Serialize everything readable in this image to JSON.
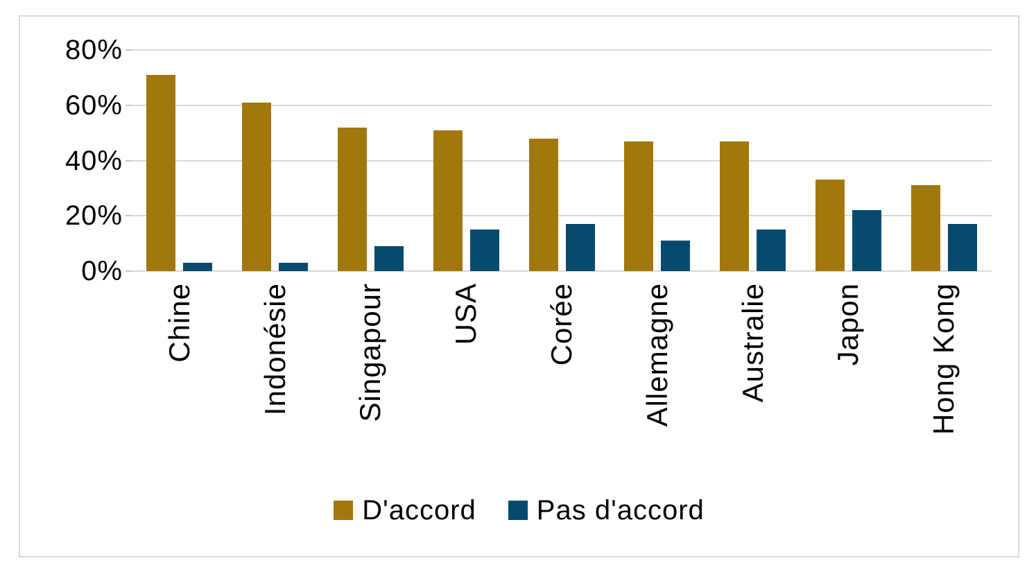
{
  "chart_data": {
    "type": "bar",
    "title": "",
    "categories": [
      "Chine",
      "Indonésie",
      "Singapour",
      "USA",
      "Corée",
      "Allemagne",
      "Australie",
      "Japon",
      "Hong Kong"
    ],
    "series": [
      {
        "name": "D'accord",
        "color": "#A1780B",
        "values": [
          71,
          61,
          52,
          51,
          48,
          47,
          47,
          33,
          31
        ]
      },
      {
        "name": "Pas d'accord",
        "color": "#064A6D",
        "values": [
          3,
          3,
          9,
          15,
          17,
          11,
          15,
          22,
          17
        ]
      }
    ],
    "xlabel": "",
    "ylabel": "",
    "ylim": [
      0,
      80
    ],
    "yticks": [
      {
        "value": 0,
        "label": "0%"
      },
      {
        "value": 20,
        "label": "20%"
      },
      {
        "value": 40,
        "label": "40%"
      },
      {
        "value": 60,
        "label": "60%"
      },
      {
        "value": 80,
        "label": "80%"
      }
    ],
    "grid": true,
    "gridline_color": "#D9D9D9",
    "frame_border_color": "#D9D9D9",
    "background_color": "#FFFFFF",
    "legend_position": "bottom-center"
  }
}
